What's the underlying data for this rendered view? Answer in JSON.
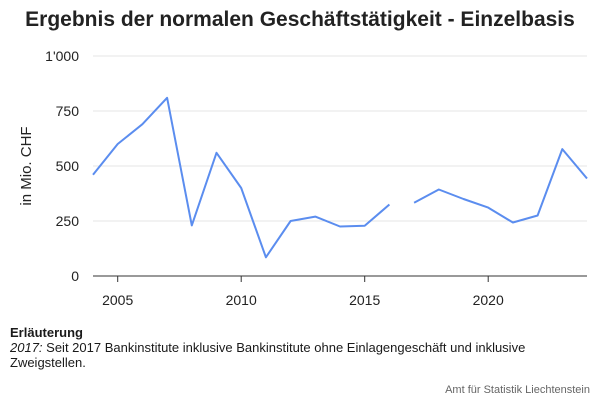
{
  "chart_data": {
    "type": "line",
    "title": "Ergebnis der normalen Geschäftstätigkeit - Einzelbasis",
    "xlabel": "",
    "ylabel": "in Mio. CHF",
    "xlim": [
      2004,
      2024
    ],
    "ylim": [
      0,
      1000
    ],
    "x_ticks": [
      2005,
      2010,
      2015,
      2020
    ],
    "y_ticks": [
      0,
      250,
      500,
      750,
      1000
    ],
    "y_tick_labels": [
      "0",
      "250",
      "500",
      "750",
      "1'000"
    ],
    "grid": "horizontal",
    "series": [
      {
        "color": "#5b8def",
        "segments": [
          {
            "x": [
              2004,
              2005,
              2006,
              2007,
              2008,
              2009,
              2010,
              2011,
              2012,
              2013,
              2014,
              2015,
              2016
            ],
            "y": [
              460,
              600,
              690,
              810,
              230,
              560,
              400,
              85,
              250,
              270,
              225,
              228,
              325
            ]
          },
          {
            "x": [
              2017,
              2018,
              2019,
              2020,
              2021,
              2022,
              2023,
              2024
            ],
            "y": [
              333,
              393,
              350,
              311,
              243,
              275,
              577,
              443
            ]
          }
        ]
      }
    ]
  },
  "notes": {
    "heading": "Erläuterung",
    "year": "2017:",
    "text": " Seit 2017 Bankinstitute inklusive Bankinstitute ohne Einlagengeschäft und inklusive Zweigstellen."
  },
  "source": "Amt für Statistik Liechtenstein"
}
